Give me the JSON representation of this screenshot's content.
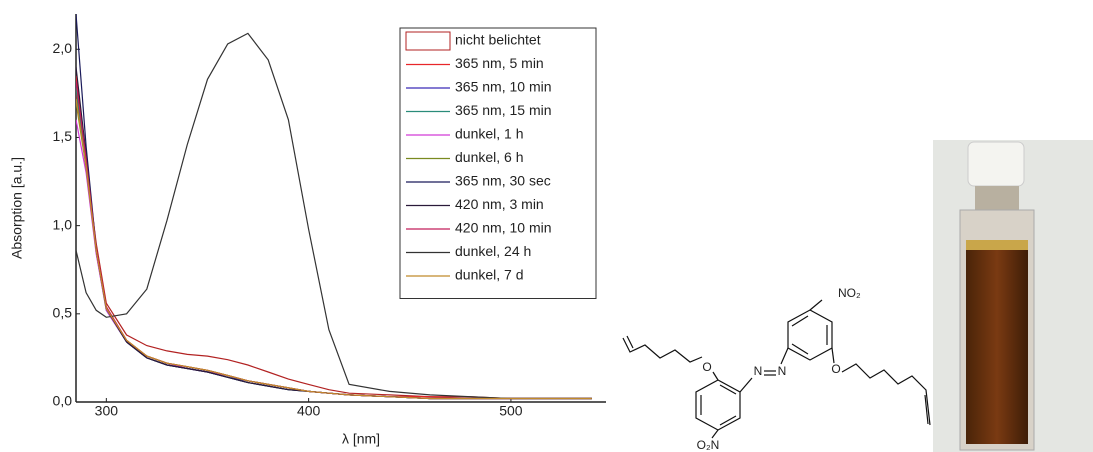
{
  "chart_data": {
    "type": "line",
    "xlabel": "λ [nm]",
    "ylabel": "Absorption [a.u.]",
    "xlim": [
      285,
      547
    ],
    "xticks": [
      300,
      400,
      500
    ],
    "ylim": [
      0,
      2.2
    ],
    "yticks": [
      {
        "value": 0,
        "label": "0,0"
      },
      {
        "value": 0.5,
        "label": "0,5"
      },
      {
        "value": 1,
        "label": "1,0"
      },
      {
        "value": 1.5,
        "label": "1,5"
      },
      {
        "value": 2,
        "label": "2,0"
      }
    ],
    "legend": "upper right",
    "x": [
      285,
      290,
      295,
      300,
      310,
      320,
      330,
      340,
      350,
      360,
      370,
      380,
      390,
      400,
      410,
      420,
      440,
      460,
      480,
      500,
      520,
      540
    ],
    "series": [
      {
        "name": "nicht belichtet",
        "color": "#b22222",
        "marker": "box",
        "values": [
          1.75,
          1.35,
          0.9,
          0.56,
          0.38,
          0.32,
          0.29,
          0.27,
          0.26,
          0.24,
          0.21,
          0.17,
          0.13,
          0.1,
          0.07,
          0.05,
          0.04,
          0.03,
          0.03,
          0.02,
          0.02,
          0.02
        ]
      },
      {
        "name": "365 nm, 5 min",
        "color": "#e8262a",
        "values": [
          1.85,
          1.4,
          0.88,
          0.54,
          0.35,
          0.26,
          0.22,
          0.2,
          0.18,
          0.15,
          0.12,
          0.1,
          0.08,
          0.06,
          0.05,
          0.04,
          0.03,
          0.03,
          0.02,
          0.02,
          0.02,
          0.02
        ]
      },
      {
        "name": "365 nm, 10 min",
        "color": "#3b2ab8",
        "values": [
          1.8,
          1.38,
          0.86,
          0.53,
          0.34,
          0.25,
          0.21,
          0.19,
          0.17,
          0.14,
          0.12,
          0.1,
          0.08,
          0.06,
          0.05,
          0.04,
          0.03,
          0.02,
          0.02,
          0.02,
          0.02,
          0.02
        ]
      },
      {
        "name": "365 nm, 15 min",
        "color": "#2a8c7a",
        "values": [
          1.78,
          1.36,
          0.85,
          0.52,
          0.34,
          0.25,
          0.21,
          0.19,
          0.17,
          0.14,
          0.11,
          0.09,
          0.07,
          0.06,
          0.05,
          0.04,
          0.03,
          0.02,
          0.02,
          0.02,
          0.02,
          0.02
        ]
      },
      {
        "name": "dunkel, 1 h",
        "color": "#d23ad6",
        "values": [
          1.6,
          1.3,
          0.84,
          0.52,
          0.34,
          0.26,
          0.22,
          0.19,
          0.17,
          0.15,
          0.12,
          0.1,
          0.08,
          0.06,
          0.05,
          0.04,
          0.03,
          0.02,
          0.02,
          0.02,
          0.02,
          0.02
        ]
      },
      {
        "name": "dunkel, 6 h",
        "color": "#7a8a20",
        "values": [
          1.7,
          1.33,
          0.86,
          0.53,
          0.35,
          0.26,
          0.22,
          0.2,
          0.18,
          0.15,
          0.12,
          0.1,
          0.08,
          0.06,
          0.05,
          0.04,
          0.03,
          0.02,
          0.02,
          0.02,
          0.02,
          0.02
        ]
      },
      {
        "name": "365 nm, 30 sec",
        "color": "#1a1a5a",
        "values": [
          2.2,
          1.45,
          0.87,
          0.53,
          0.34,
          0.25,
          0.21,
          0.19,
          0.17,
          0.14,
          0.11,
          0.09,
          0.07,
          0.06,
          0.05,
          0.04,
          0.03,
          0.02,
          0.02,
          0.02,
          0.02,
          0.02
        ]
      },
      {
        "name": "420 nm, 3 min",
        "color": "#2a1a3a",
        "values": [
          1.9,
          1.4,
          0.86,
          0.53,
          0.34,
          0.25,
          0.21,
          0.19,
          0.17,
          0.14,
          0.11,
          0.09,
          0.07,
          0.06,
          0.05,
          0.04,
          0.03,
          0.02,
          0.02,
          0.02,
          0.02,
          0.02
        ]
      },
      {
        "name": "420 nm, 10 min",
        "color": "#c21d5a",
        "values": [
          1.82,
          1.38,
          0.87,
          0.54,
          0.35,
          0.26,
          0.22,
          0.2,
          0.18,
          0.15,
          0.12,
          0.1,
          0.08,
          0.06,
          0.05,
          0.04,
          0.03,
          0.02,
          0.02,
          0.02,
          0.02,
          0.02
        ]
      },
      {
        "name": "dunkel, 24 h",
        "color": "#333333",
        "values": [
          0.86,
          0.62,
          0.52,
          0.48,
          0.5,
          0.64,
          1.03,
          1.46,
          1.83,
          2.03,
          2.09,
          1.94,
          1.6,
          0.98,
          0.41,
          0.1,
          0.06,
          0.04,
          0.03,
          0.02,
          0.02,
          0.02
        ]
      },
      {
        "name": "dunkel, 7 d",
        "color": "#c08a2a",
        "values": [
          1.72,
          1.34,
          0.86,
          0.53,
          0.35,
          0.26,
          0.22,
          0.2,
          0.18,
          0.15,
          0.12,
          0.1,
          0.08,
          0.06,
          0.05,
          0.04,
          0.03,
          0.02,
          0.02,
          0.02,
          0.02,
          0.02
        ]
      }
    ]
  },
  "molecule": {
    "labels": [
      "NO₂",
      "O",
      "N",
      "N",
      "O",
      "O₂N"
    ]
  }
}
